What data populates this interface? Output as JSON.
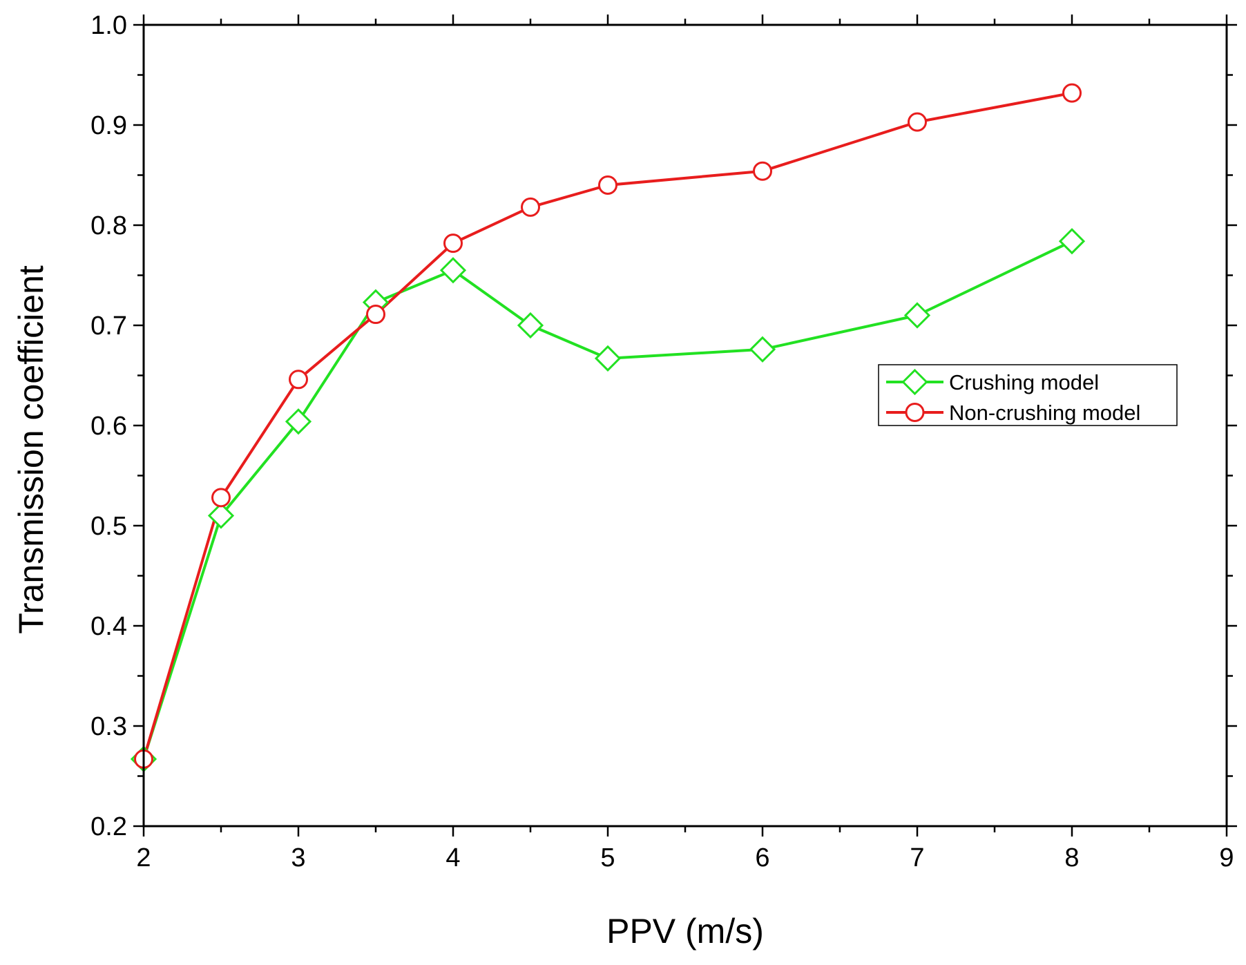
{
  "chart_data": {
    "type": "line",
    "title": "",
    "xlabel": "PPV (m/s)",
    "ylabel": "Transmission coefficient",
    "xlim": [
      2,
      9
    ],
    "ylim": [
      0.2,
      1.0
    ],
    "x_ticks": [
      "2",
      "3",
      "4",
      "5",
      "6",
      "7",
      "8",
      "9"
    ],
    "y_ticks": [
      "0.2",
      "0.3",
      "0.4",
      "0.5",
      "0.6",
      "0.7",
      "0.8",
      "0.9",
      "1.0"
    ],
    "legend_position": "right-middle",
    "series": [
      {
        "name": "Crushing model",
        "color": "#22e122",
        "marker": "diamond",
        "x": [
          2,
          2.5,
          3,
          3.5,
          4,
          4.5,
          5,
          6,
          7,
          8
        ],
        "y": [
          0.267,
          0.51,
          0.604,
          0.723,
          0.755,
          0.7,
          0.667,
          0.676,
          0.71,
          0.784
        ]
      },
      {
        "name": "Non-crushing model",
        "color": "#e81d1d",
        "marker": "circle",
        "x": [
          2,
          2.5,
          3,
          3.5,
          4,
          4.5,
          5,
          6,
          7,
          8
        ],
        "y": [
          0.267,
          0.528,
          0.646,
          0.711,
          0.782,
          0.818,
          0.84,
          0.854,
          0.903,
          0.932
        ]
      }
    ]
  }
}
